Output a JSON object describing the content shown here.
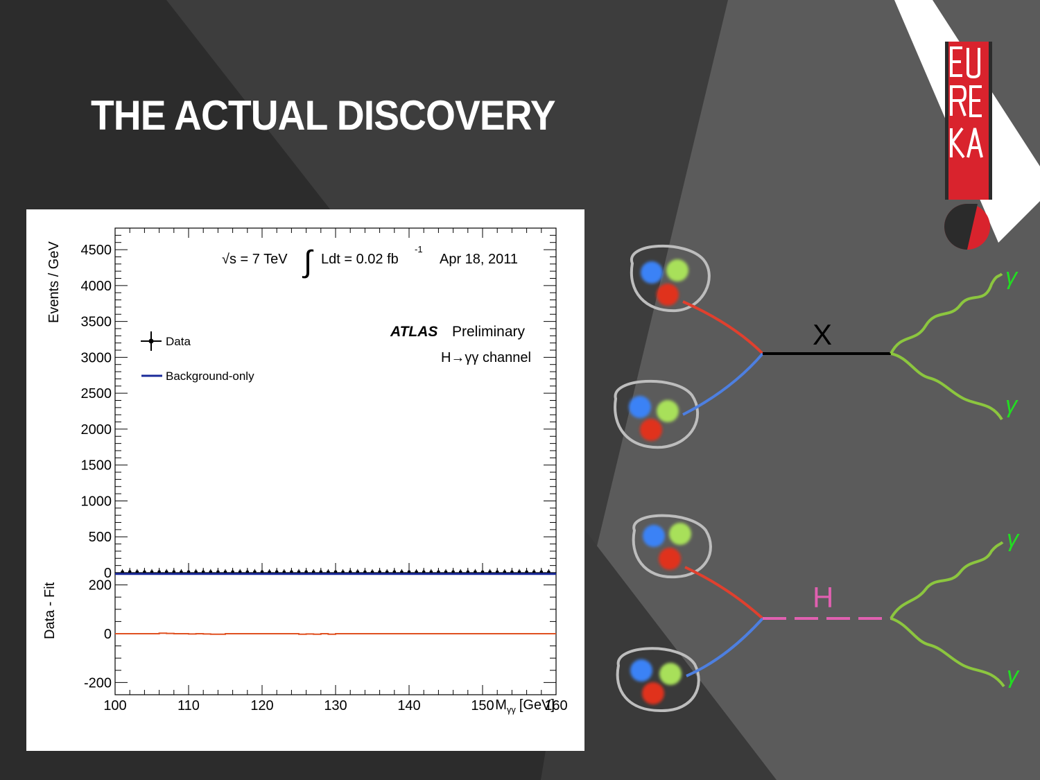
{
  "slide": {
    "title": "THE ACTUAL DISCOVERY",
    "background_colors": [
      "#2b2b2b",
      "#3d3d3d",
      "#4a4a4a",
      "#5a5a5a"
    ]
  },
  "chart_data": {
    "type": "line",
    "experiment": "ATLAS",
    "experiment_status": "Preliminary",
    "channel": "H→γγ channel",
    "energy_label": "√s = 7 TeV",
    "lumi_label": "Ldt = 0.02 fb",
    "lumi_exponent": "-1",
    "date_label": "Apr 18, 2011",
    "xlabel": "Mγγ [GeV]",
    "xlabel_main": "M",
    "xlabel_sub": "γγ",
    "xlabel_unit": "[GeV]",
    "xlim": [
      100,
      160
    ],
    "x_ticks": [
      "100",
      "110",
      "120",
      "130",
      "140",
      "150",
      "160"
    ],
    "top_panel": {
      "ylabel": "Events / GeV",
      "ylim": [
        0,
        4800
      ],
      "y_ticks": [
        "0",
        "500",
        "1000",
        "1500",
        "2000",
        "2500",
        "3000",
        "3500",
        "4000",
        "4500"
      ]
    },
    "bottom_panel": {
      "ylabel": "Data - Fit",
      "ylim": [
        -250,
        250
      ],
      "y_ticks": [
        "-200",
        "0",
        "200"
      ]
    },
    "legend": {
      "position": "top-left",
      "entries": [
        "Data",
        "Background-only"
      ]
    },
    "series": [
      {
        "name": "Data",
        "style": "points",
        "color": "#000000",
        "x": [
          101,
          102,
          103,
          104,
          105,
          106,
          107,
          108,
          109,
          110,
          111,
          112,
          113,
          114,
          115,
          116,
          117,
          118,
          119,
          120,
          121,
          122,
          123,
          124,
          125,
          126,
          127,
          128,
          129,
          130,
          131,
          132,
          133,
          134,
          135,
          136,
          137,
          138,
          139,
          140,
          141,
          142,
          143,
          144,
          145,
          146,
          147,
          148,
          149,
          150,
          151,
          152,
          153,
          154,
          155,
          156,
          157,
          158,
          159
        ],
        "values": [
          2,
          3,
          2,
          1,
          2,
          3,
          2,
          2,
          1,
          2,
          3,
          1,
          2,
          2,
          1,
          2,
          2,
          1,
          2,
          3,
          1,
          2,
          1,
          2,
          2,
          3,
          1,
          2,
          1,
          2,
          1,
          2,
          2,
          1,
          1,
          2,
          1,
          2,
          1,
          2,
          1,
          1,
          2,
          1,
          1,
          2,
          1,
          1,
          2,
          1,
          2,
          1,
          1,
          1,
          2,
          1,
          1,
          1,
          1
        ]
      },
      {
        "name": "Background-only",
        "style": "line",
        "color": "#1a2a9a",
        "x": [
          100,
          160
        ],
        "values": [
          2,
          2
        ]
      }
    ],
    "residuals": {
      "color": "#e05020",
      "x": [
        100,
        104,
        106,
        107,
        108,
        110,
        111,
        112,
        113,
        114,
        115,
        117,
        125,
        126,
        127,
        128,
        129,
        130,
        160
      ],
      "values": [
        0,
        0,
        2,
        1,
        0,
        -1,
        0,
        -1,
        -2,
        -2,
        0,
        0,
        -2,
        -1,
        -2,
        0,
        -2,
        0,
        0
      ]
    }
  },
  "diagram": {
    "upper": {
      "mediator_label": "X",
      "photon_labels": [
        "γ",
        "γ"
      ]
    },
    "lower": {
      "mediator_label": "H",
      "photon_labels": [
        "γ",
        "γ"
      ]
    },
    "colors": {
      "quark_blue": "#3b82f6",
      "quark_green": "#a8e05a",
      "quark_red": "#e0301e",
      "photon": "#8cc63f",
      "gamma_label": "#22dd22",
      "higgs": "#e060b0"
    }
  },
  "logo": {
    "name": "EUREKA",
    "colors": [
      "#d9232d",
      "#ffffff",
      "#2b2b2b"
    ]
  }
}
